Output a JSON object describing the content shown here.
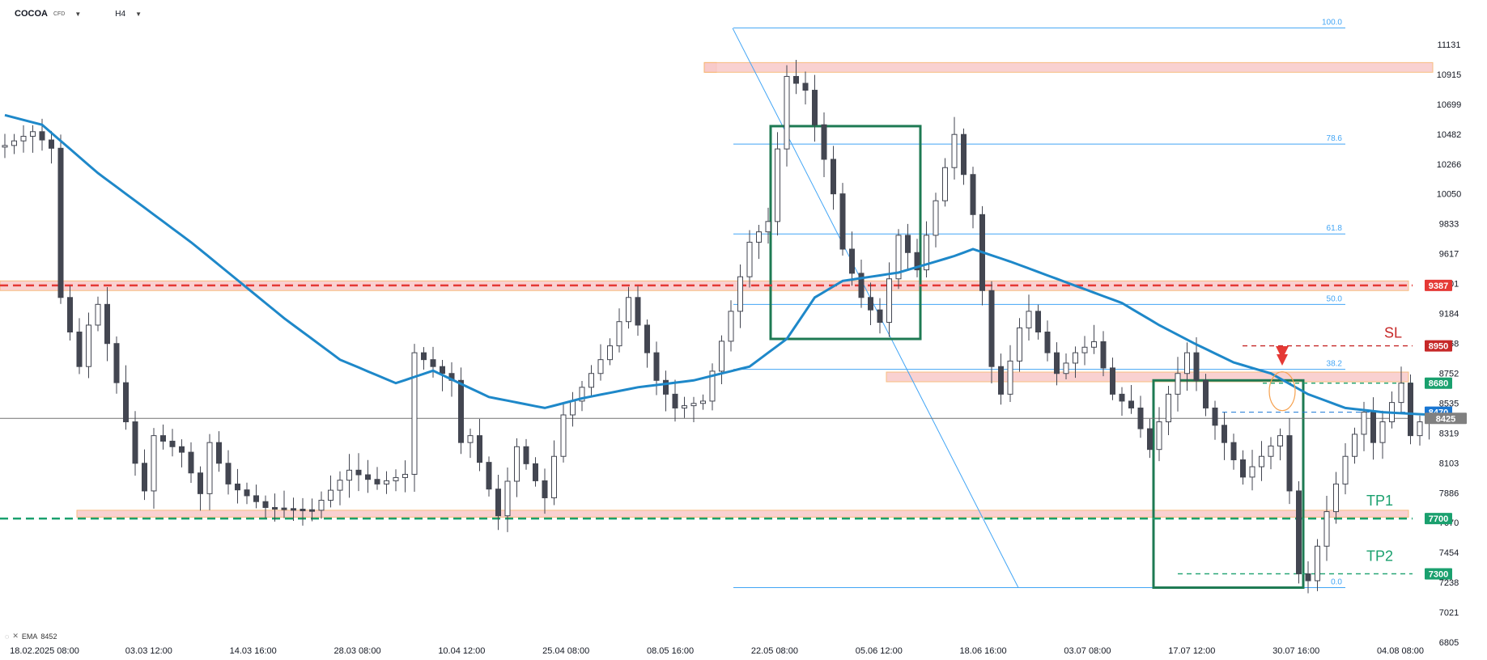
{
  "header": {
    "symbol": "COCOA",
    "type": "CFD",
    "timeframe": "H4",
    "symbol_caret_icon": "chevron-down-icon",
    "tf_caret_icon": "chevron-down-icon"
  },
  "legend": {
    "eye_icon": "eye-off-icon",
    "close_icon": "close-icon",
    "label": "EMA",
    "value": "8452"
  },
  "chart_data": {
    "type": "candlestick",
    "title": "COCOA CFD H4",
    "y_ticks": [
      "11131",
      "10915",
      "10699",
      "10482",
      "10266",
      "10050",
      "9833",
      "9617",
      "9401",
      "9184",
      "8968",
      "8752",
      "8535",
      "8319",
      "8103",
      "7886",
      "7670",
      "7454",
      "7238",
      "7021",
      "6805"
    ],
    "x_ticks": [
      "18.02.2025  08:00",
      "03.03  12:00",
      "14.03  16:00",
      "28.03  08:00",
      "10.04  12:00",
      "25.04  08:00",
      "08.05  16:00",
      "22.05  08:00",
      "05.06  12:00",
      "18.06  16:00",
      "03.07  08:00",
      "17.07  12:00",
      "30.07  16:00",
      "04.08  08:00"
    ],
    "ylim": [
      6805,
      11250
    ],
    "grid": false,
    "price_path": [
      [
        0,
        10400
      ],
      [
        3,
        10500
      ],
      [
        5,
        10380
      ],
      [
        6,
        9300
      ],
      [
        8,
        8800
      ],
      [
        9,
        9100
      ],
      [
        10,
        9250
      ],
      [
        13,
        8400
      ],
      [
        14,
        8100
      ],
      [
        15,
        7900
      ],
      [
        16,
        8300
      ],
      [
        19,
        8180
      ],
      [
        21,
        7880
      ],
      [
        22,
        8250
      ],
      [
        24,
        7950
      ],
      [
        28,
        7780
      ],
      [
        33,
        7760
      ],
      [
        37,
        8050
      ],
      [
        40,
        7950
      ],
      [
        43,
        8020
      ],
      [
        44,
        8900
      ],
      [
        48,
        8700
      ],
      [
        49,
        8250
      ],
      [
        50,
        8300
      ],
      [
        53,
        7720
      ],
      [
        55,
        8220
      ],
      [
        58,
        7850
      ],
      [
        60,
        8450
      ],
      [
        65,
        8950
      ],
      [
        67,
        9300
      ],
      [
        70,
        8700
      ],
      [
        72,
        8500
      ],
      [
        75,
        8550
      ],
      [
        78,
        9200
      ],
      [
        80,
        9700
      ],
      [
        82,
        9850
      ],
      [
        84,
        10900
      ],
      [
        86,
        10800
      ],
      [
        89,
        10050
      ],
      [
        90,
        9650
      ],
      [
        92,
        9300
      ],
      [
        94,
        9120
      ],
      [
        96,
        9750
      ],
      [
        98,
        9500
      ],
      [
        100,
        10000
      ],
      [
        102,
        10480
      ],
      [
        104,
        9900
      ],
      [
        106,
        8800
      ],
      [
        107,
        8600
      ],
      [
        109,
        9080
      ],
      [
        110,
        9200
      ],
      [
        113,
        8750
      ],
      [
        115,
        8900
      ],
      [
        117,
        8980
      ],
      [
        119,
        8600
      ],
      [
        121,
        8500
      ],
      [
        123,
        8200
      ],
      [
        125,
        8600
      ],
      [
        127,
        8900
      ],
      [
        129,
        8500
      ],
      [
        131,
        8250
      ],
      [
        133,
        8000
      ],
      [
        135,
        8150
      ],
      [
        137,
        8300
      ],
      [
        138,
        7900
      ],
      [
        139,
        7300
      ],
      [
        140,
        7250
      ],
      [
        142,
        7750
      ],
      [
        144,
        8150
      ],
      [
        146,
        8470
      ],
      [
        147,
        8250
      ],
      [
        148,
        8400
      ],
      [
        150,
        8680
      ],
      [
        151,
        8300
      ],
      [
        152,
        8400
      ],
      [
        153,
        8425
      ]
    ],
    "ema_path": [
      [
        0,
        10620
      ],
      [
        4,
        10550
      ],
      [
        10,
        10200
      ],
      [
        20,
        9700
      ],
      [
        30,
        9150
      ],
      [
        36,
        8850
      ],
      [
        42,
        8680
      ],
      [
        46,
        8770
      ],
      [
        52,
        8580
      ],
      [
        58,
        8500
      ],
      [
        62,
        8570
      ],
      [
        68,
        8650
      ],
      [
        74,
        8700
      ],
      [
        80,
        8800
      ],
      [
        84,
        9000
      ],
      [
        87,
        9300
      ],
      [
        90,
        9420
      ],
      [
        96,
        9480
      ],
      [
        102,
        9600
      ],
      [
        104,
        9650
      ],
      [
        108,
        9560
      ],
      [
        112,
        9460
      ],
      [
        116,
        9360
      ],
      [
        120,
        9260
      ],
      [
        124,
        9100
      ],
      [
        128,
        8960
      ],
      [
        132,
        8830
      ],
      [
        136,
        8750
      ],
      [
        140,
        8600
      ],
      [
        144,
        8500
      ],
      [
        148,
        8470
      ],
      [
        152,
        8455
      ],
      [
        153,
        8452
      ]
    ],
    "fib_levels": [
      {
        "label": "100.0",
        "value": 11250
      },
      {
        "label": "78.6",
        "value": 10410
      },
      {
        "label": "61.8",
        "value": 9760
      },
      {
        "label": "50.0",
        "value": 9250
      },
      {
        "label": "38.2",
        "value": 8780
      },
      {
        "label": "0.0",
        "value": 7200
      }
    ],
    "horizontal_levels": [
      {
        "name": "resistance",
        "value": 9387,
        "label": "9387",
        "color": "#e53935"
      },
      {
        "name": "SL",
        "value": 8950,
        "label": "8950",
        "color": "#c62828"
      },
      {
        "name": "entry-zone",
        "value": 8680,
        "label": "8680",
        "color": "#1aa06e"
      },
      {
        "name": "EMA",
        "value": 8470,
        "label": "8470",
        "color": "#1976d2"
      },
      {
        "name": "last-price",
        "value": 8425,
        "label": "8425",
        "color": "#808080"
      },
      {
        "name": "TP1",
        "value": 7700,
        "label": "7700",
        "color": "#1aa06e"
      },
      {
        "name": "TP2",
        "value": 7300,
        "label": "7300",
        "color": "#1aa06e"
      }
    ],
    "annotations": [
      "SL",
      "TP1",
      "TP2"
    ],
    "colors": {
      "ema": "#1e88c9",
      "fib": "#42a5f5",
      "box": "#1e7a53",
      "zone": "#f8c9c9",
      "zone_border": "#f6b26b",
      "sl": "#d32f2f",
      "tp": "#1aa06e",
      "candle": "#434651"
    }
  }
}
